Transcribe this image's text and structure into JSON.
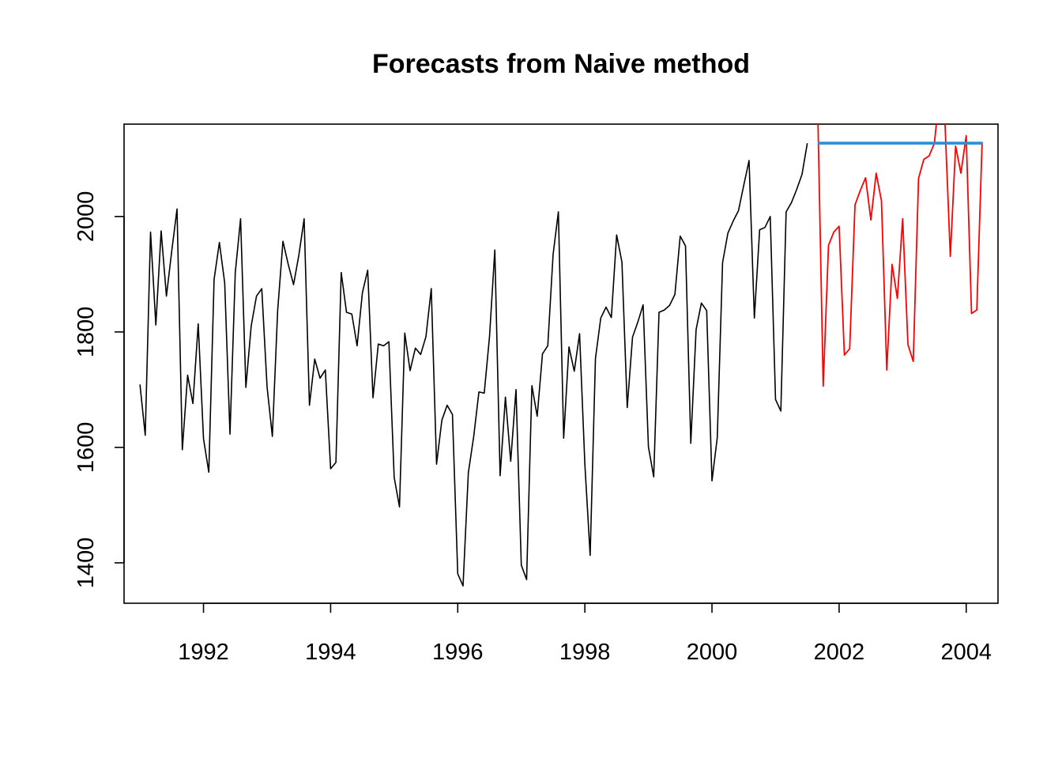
{
  "chart_data": {
    "type": "line",
    "title": "Forecasts from Naive method",
    "xlabel": "",
    "ylabel": "",
    "xlim": [
      1990.75,
      2004.5
    ],
    "ylim": [
      1330,
      2160
    ],
    "x_ticks": [
      1992,
      1994,
      1996,
      1998,
      2000,
      2002,
      2004
    ],
    "y_ticks": [
      1400,
      1600,
      1800,
      2000
    ],
    "grid": false,
    "legend": "none",
    "series": [
      {
        "color": "#000000",
        "start": 1991.0,
        "step": 0.0833333,
        "values": [
          1709,
          1621,
          1973,
          1812,
          1975,
          1862,
          1940,
          2013,
          1596,
          1725,
          1676,
          1814,
          1615,
          1557,
          1891,
          1955,
          1885,
          1623,
          1903,
          1996,
          1704,
          1810,
          1862,
          1875,
          1705,
          1619,
          1837,
          1957,
          1917,
          1882,
          1933,
          1996,
          1673,
          1753,
          1720,
          1734,
          1563,
          1574,
          1903,
          1834,
          1831,
          1776,
          1868,
          1907,
          1686,
          1779,
          1776,
          1783,
          1548,
          1497,
          1798,
          1733,
          1772,
          1761,
          1792,
          1875,
          1571,
          1647,
          1673,
          1657,
          1381,
          1360,
          1556,
          1618,
          1696,
          1694,
          1792,
          1942,
          1551,
          1687,
          1576,
          1700,
          1396,
          1371,
          1707,
          1654,
          1762,
          1776,
          1934,
          2008,
          1616,
          1774,
          1732,
          1797,
          1571,
          1413,
          1754,
          1824,
          1843,
          1825,
          1968,
          1921,
          1669,
          1791,
          1817,
          1847,
          1601,
          1549,
          1834,
          1838,
          1846,
          1865,
          1966,
          1949,
          1607,
          1804,
          1850,
          1837,
          1542,
          1617,
          1920,
          1971,
          1992,
          2010,
          2054,
          2097,
          1824,
          1977,
          1981,
          2000,
          1683,
          1663,
          2008,
          2024,
          2047,
          2073,
          2127
        ]
      },
      {
        "color": "#FF0000",
        "start": 2001.6666667,
        "step": 0.0833333,
        "values": [
          2170,
          1706,
          1950,
          1973,
          1983,
          1760,
          1771,
          2020,
          2045,
          2067,
          1994,
          2075,
          2027,
          1734,
          1917,
          1858,
          1996,
          1778,
          1749,
          2066,
          2099,
          2105,
          2127,
          2220,
          2160,
          1931,
          2122,
          2075,
          2140,
          1832,
          1838,
          2129
        ]
      },
      {
        "color": "#2C8FD6",
        "start": 2001.6666667,
        "step": 0.0833333,
        "values": [
          2127,
          2127,
          2127,
          2127,
          2127,
          2127,
          2127,
          2127,
          2127,
          2127,
          2127,
          2127,
          2127,
          2127,
          2127,
          2127,
          2127,
          2127,
          2127,
          2127,
          2127,
          2127,
          2127,
          2127,
          2127,
          2127,
          2127,
          2127,
          2127,
          2127,
          2127,
          2127
        ]
      }
    ]
  }
}
